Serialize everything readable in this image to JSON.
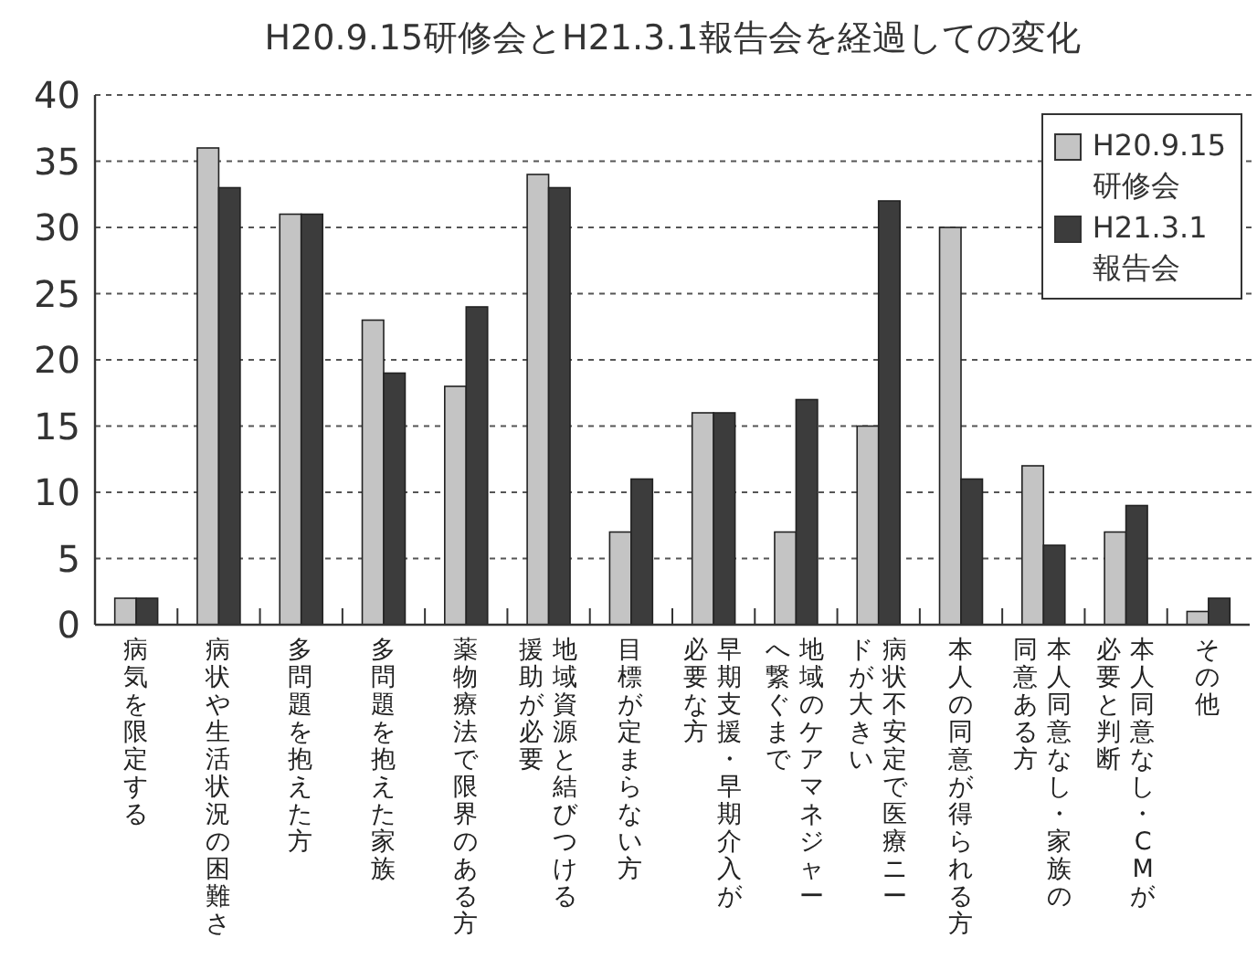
{
  "chart_data": {
    "type": "bar",
    "title": "H20.9.15研修会とH21.3.1報告会を経過しての変化",
    "categories": [
      "病気を限定する",
      "病状や生活状況の困難さ",
      "多問題を抱えた方",
      "多問題を抱えた家族",
      "薬物療法で限界のある方",
      "地域資源と結びつける援助が必要",
      "目標が定まらない方",
      "早期支援・早期介入が必要な方",
      "地域のケアマネジャーへ繋ぐまで",
      "病状不安定で医療ニードが大きい",
      "本人の同意が得られる方",
      "本人同意なし・家族の同意ある方",
      "本人同意なし・CMが必要と判断",
      "その他"
    ],
    "series": [
      {
        "name": "H20.9.15\n研修会",
        "color": "#c4c4c4",
        "values": [
          2,
          36,
          31,
          23,
          18,
          34,
          7,
          16,
          7,
          15,
          30,
          12,
          7,
          1
        ]
      },
      {
        "name": "H21.3.1\n報告会",
        "color": "#3c3c3c",
        "values": [
          2,
          33,
          31,
          19,
          24,
          33,
          11,
          16,
          17,
          32,
          11,
          6,
          9,
          2
        ]
      }
    ],
    "ylim": [
      0,
      40
    ],
    "yticks": [
      0,
      5,
      10,
      15,
      20,
      25,
      30,
      35,
      40
    ],
    "grid": "y",
    "legend": "top right"
  }
}
